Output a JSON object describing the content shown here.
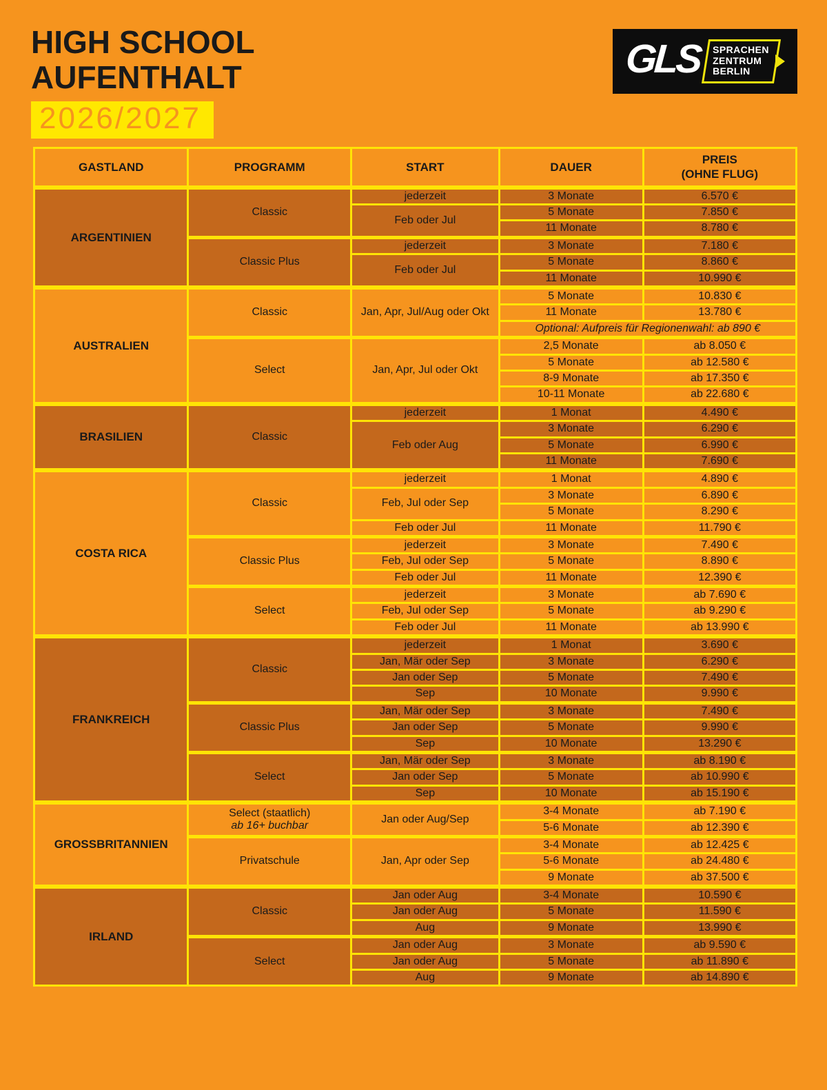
{
  "colors": {
    "page_orange": "#F6941E",
    "section_dark_orange": "#C4681C",
    "border_yellow": "#FFE405",
    "highlight_yellow": "#FFE800",
    "text_black": "#1A1A1A",
    "logo_black": "#0D0D0D",
    "logo_yellow": "#F0E40C",
    "logo_white": "#FFFFFF"
  },
  "header": {
    "title_line1": "HIGH SCHOOL",
    "title_line2": "AUFENTHALT",
    "season": "2026/2027"
  },
  "logo": {
    "name": "GLS",
    "line1": "SPRACHEN",
    "line2": "ZENTRUM",
    "line3": "BERLIN"
  },
  "table": {
    "col_gastland": "GASTLAND",
    "col_programm": "PROGRAMM",
    "col_start": "START",
    "col_dauer": "DAUER",
    "col_preis": "PREIS",
    "col_preis_sub": "(OHNE FLUG)",
    "countries": [
      {
        "name": "ARGENTINIEN",
        "shade": "dark",
        "programs": [
          {
            "name": "Classic",
            "starts": [
              {
                "label": "jederzeit",
                "rows": [
                  [
                    "3 Monate",
                    "6.570 €"
                  ]
                ]
              },
              {
                "label": "Feb oder Jul",
                "rows": [
                  [
                    "5 Monate",
                    "7.850 €"
                  ],
                  [
                    "11 Monate",
                    "8.780 €"
                  ]
                ]
              }
            ]
          },
          {
            "name": "Classic Plus",
            "starts": [
              {
                "label": "jederzeit",
                "rows": [
                  [
                    "3 Monate",
                    "7.180 €"
                  ]
                ]
              },
              {
                "label": "Feb oder Jul",
                "rows": [
                  [
                    "5 Monate",
                    "8.860 €"
                  ],
                  [
                    "11 Monate",
                    "10.990 €"
                  ]
                ]
              }
            ]
          }
        ]
      },
      {
        "name": "AUSTRALIEN",
        "shade": "light",
        "programs": [
          {
            "name": "Classic",
            "starts": [
              {
                "label": "Jan, Apr, Jul/Aug oder Okt",
                "rows": [
                  [
                    "5 Monate",
                    "10.830 €"
                  ],
                  [
                    "11 Monate",
                    "13.780 €"
                  ],
                  {
                    "note": "Optional: Aufpreis für Regionenwahl: ab 890 €"
                  }
                ]
              }
            ]
          },
          {
            "name": "Select",
            "starts": [
              {
                "label": "Jan, Apr, Jul oder Okt",
                "rows": [
                  [
                    "2,5 Monate",
                    "ab 8.050 €"
                  ],
                  [
                    "5 Monate",
                    "ab 12.580 €"
                  ],
                  [
                    "8-9 Monate",
                    "ab 17.350 €"
                  ],
                  [
                    "10-11 Monate",
                    "ab 22.680 €"
                  ]
                ]
              }
            ]
          }
        ]
      },
      {
        "name": "BRASILIEN",
        "shade": "dark",
        "programs": [
          {
            "name": "Classic",
            "starts": [
              {
                "label": "jederzeit",
                "rows": [
                  [
                    "1 Monat",
                    "4.490 €"
                  ]
                ]
              },
              {
                "label": "Feb oder Aug",
                "rows": [
                  [
                    "3 Monate",
                    "6.290 €"
                  ],
                  [
                    "5 Monate",
                    "6.990 €"
                  ],
                  [
                    "11 Monate",
                    "7.690 €"
                  ]
                ]
              }
            ]
          }
        ]
      },
      {
        "name": "COSTA RICA",
        "shade": "light",
        "programs": [
          {
            "name": "Classic",
            "starts": [
              {
                "label": "jederzeit",
                "rows": [
                  [
                    "1 Monat",
                    "4.890 €"
                  ]
                ]
              },
              {
                "label": "Feb, Jul oder Sep",
                "rows": [
                  [
                    "3 Monate",
                    "6.890 €"
                  ],
                  [
                    "5 Monate",
                    "8.290 €"
                  ]
                ]
              },
              {
                "label": "Feb oder Jul",
                "rows": [
                  [
                    "11 Monate",
                    "11.790 €"
                  ]
                ]
              }
            ]
          },
          {
            "name": "Classic Plus",
            "starts": [
              {
                "label": "jederzeit",
                "rows": [
                  [
                    "3 Monate",
                    "7.490 €"
                  ]
                ]
              },
              {
                "label": "Feb, Jul oder Sep",
                "rows": [
                  [
                    "5 Monate",
                    "8.890 €"
                  ]
                ]
              },
              {
                "label": "Feb oder Jul",
                "rows": [
                  [
                    "11 Monate",
                    "12.390 €"
                  ]
                ]
              }
            ]
          },
          {
            "name": "Select",
            "starts": [
              {
                "label": "jederzeit",
                "rows": [
                  [
                    "3 Monate",
                    "ab 7.690 €"
                  ]
                ]
              },
              {
                "label": "Feb, Jul oder Sep",
                "rows": [
                  [
                    "5 Monate",
                    "ab 9.290 €"
                  ]
                ]
              },
              {
                "label": "Feb oder Jul",
                "rows": [
                  [
                    "11 Monate",
                    "ab 13.990 €"
                  ]
                ]
              }
            ]
          }
        ]
      },
      {
        "name": "FRANKREICH",
        "shade": "dark",
        "programs": [
          {
            "name": "Classic",
            "starts": [
              {
                "label": "jederzeit",
                "rows": [
                  [
                    "1 Monat",
                    "3.690 €"
                  ]
                ]
              },
              {
                "label": "Jan, Mär oder Sep",
                "rows": [
                  [
                    "3 Monate",
                    "6.290 €"
                  ]
                ]
              },
              {
                "label": "Jan oder Sep",
                "rows": [
                  [
                    "5 Monate",
                    "7.490 €"
                  ]
                ]
              },
              {
                "label": "Sep",
                "rows": [
                  [
                    "10 Monate",
                    "9.990 €"
                  ]
                ]
              }
            ]
          },
          {
            "name": "Classic Plus",
            "starts": [
              {
                "label": "Jan, Mär oder Sep",
                "rows": [
                  [
                    "3 Monate",
                    "7.490 €"
                  ]
                ]
              },
              {
                "label": "Jan oder Sep",
                "rows": [
                  [
                    "5 Monate",
                    "9.990 €"
                  ]
                ]
              },
              {
                "label": "Sep",
                "rows": [
                  [
                    "10 Monate",
                    "13.290 €"
                  ]
                ]
              }
            ]
          },
          {
            "name": "Select",
            "starts": [
              {
                "label": "Jan, Mär oder Sep",
                "rows": [
                  [
                    "3 Monate",
                    "ab 8.190 €"
                  ]
                ]
              },
              {
                "label": "Jan oder Sep",
                "rows": [
                  [
                    "5 Monate",
                    "ab 10.990 €"
                  ]
                ]
              },
              {
                "label": "Sep",
                "rows": [
                  [
                    "10 Monate",
                    "ab 15.190 €"
                  ]
                ]
              }
            ]
          }
        ]
      },
      {
        "name": "GROSSBRITANNIEN",
        "shade": "light",
        "programs": [
          {
            "name": "Select (staatlich)",
            "name2": "ab 16+ buchbar",
            "starts": [
              {
                "label": "Jan oder Aug/Sep",
                "rows": [
                  [
                    "3-4 Monate",
                    "ab 7.190 €"
                  ],
                  [
                    "5-6 Monate",
                    "ab 12.390 €"
                  ]
                ]
              }
            ]
          },
          {
            "name": "Privatschule",
            "starts": [
              {
                "label": "Jan, Apr oder Sep",
                "rows": [
                  [
                    "3-4 Monate",
                    "ab 12.425 €"
                  ],
                  [
                    "5-6 Monate",
                    "ab 24.480 €"
                  ],
                  [
                    "9 Monate",
                    "ab 37.500 €"
                  ]
                ]
              }
            ]
          }
        ]
      },
      {
        "name": "IRLAND",
        "shade": "dark",
        "programs": [
          {
            "name": "Classic",
            "starts": [
              {
                "label": "Jan oder Aug",
                "rows": [
                  [
                    "3-4 Monate",
                    "10.590 €"
                  ]
                ]
              },
              {
                "label": "Jan oder Aug",
                "rows": [
                  [
                    "5 Monate",
                    "11.590 €"
                  ]
                ]
              },
              {
                "label": "Aug",
                "rows": [
                  [
                    "9 Monate",
                    "13.990 €"
                  ]
                ]
              }
            ]
          },
          {
            "name": "Select",
            "starts": [
              {
                "label": "Jan oder Aug",
                "rows": [
                  [
                    "3 Monate",
                    "ab 9.590 €"
                  ]
                ]
              },
              {
                "label": "Jan oder Aug",
                "rows": [
                  [
                    "5 Monate",
                    "ab 11.890 €"
                  ]
                ]
              },
              {
                "label": "Aug",
                "rows": [
                  [
                    "9 Monate",
                    "ab 14.890 €"
                  ]
                ]
              }
            ]
          }
        ]
      }
    ]
  }
}
